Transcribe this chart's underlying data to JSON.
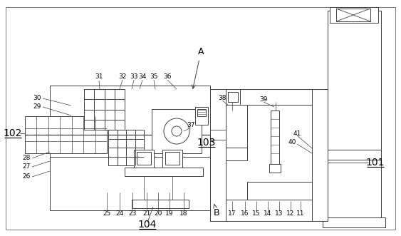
{
  "bg_color": "#ffffff",
  "line_color": "#404040",
  "figsize": [
    5.63,
    3.31
  ],
  "dpi": 100,
  "hatch_density": "///",
  "grid_hatch": "+++",
  "labels_large": [
    [
      "102",
      18,
      187
    ],
    [
      "103",
      290,
      200
    ],
    [
      "101",
      527,
      228
    ],
    [
      "104",
      207,
      315
    ]
  ],
  "labels_A": [
    "A",
    280,
    72
  ],
  "labels_B": [
    "B",
    302,
    298
  ],
  "labels_small": [
    [
      "31",
      139,
      108
    ],
    [
      "32",
      172,
      107
    ],
    [
      "33",
      188,
      107
    ],
    [
      "34",
      200,
      107
    ],
    [
      "35",
      216,
      107
    ],
    [
      "36",
      235,
      107
    ],
    [
      "37",
      268,
      176
    ],
    [
      "38",
      312,
      138
    ],
    [
      "39",
      370,
      140
    ],
    [
      "40",
      410,
      200
    ],
    [
      "41",
      417,
      188
    ],
    [
      "30",
      52,
      138
    ],
    [
      "29",
      52,
      150
    ],
    [
      "28",
      37,
      222
    ],
    [
      "27",
      37,
      234
    ],
    [
      "26",
      37,
      248
    ],
    [
      "11",
      422,
      300
    ],
    [
      "12",
      408,
      300
    ],
    [
      "13",
      392,
      300
    ],
    [
      "14",
      376,
      300
    ],
    [
      "15",
      360,
      300
    ],
    [
      "16",
      344,
      300
    ],
    [
      "17",
      326,
      300
    ],
    [
      "18",
      258,
      300
    ],
    [
      "19",
      238,
      300
    ],
    [
      "20",
      222,
      300
    ],
    [
      "21",
      206,
      300
    ],
    [
      "23",
      186,
      300
    ],
    [
      "24",
      168,
      300
    ],
    [
      "25",
      150,
      300
    ]
  ]
}
